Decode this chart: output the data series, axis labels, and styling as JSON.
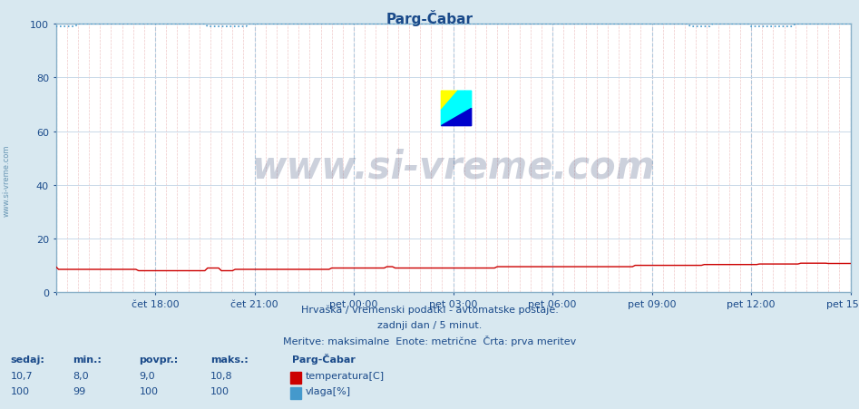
{
  "title": "Parg-Čabar",
  "title_color": "#1a4a8a",
  "bg_color": "#d8e8f0",
  "plot_bg_color": "#ffffff",
  "ylim": [
    0,
    100
  ],
  "yticks": [
    0,
    20,
    40,
    60,
    80,
    100
  ],
  "xtick_labels": [
    "čet 18:00",
    "čet 21:00",
    "pet 00:00",
    "pet 03:00",
    "pet 06:00",
    "pet 09:00",
    "pet 12:00",
    "pet 15:00"
  ],
  "n_points": 289,
  "temp_color": "#cc0000",
  "humidity_color": "#4499cc",
  "major_vgrid_color": "#b0c8dc",
  "minor_vgrid_color": "#f0c8c8",
  "hgrid_color": "#c8d8e8",
  "footer_line1": "Hrvaška / vremenski podatki - avtomatske postaje.",
  "footer_line2": "zadnji dan / 5 minut.",
  "footer_line3": "Meritve: maksimalne  Enote: metrične  Črta: prva meritev",
  "legend_title": "Parg-Čabar",
  "legend_temp_label": "temperatura[C]",
  "legend_humidity_label": "vlaga[%]",
  "stats_headers": [
    "sedaj:",
    "min.:",
    "povpr.:",
    "maks.:"
  ],
  "temp_stats": [
    "10,7",
    "8,0",
    "9,0",
    "10,8"
  ],
  "humidity_stats": [
    "100",
    "99",
    "100",
    "100"
  ],
  "watermark": "www.si-vreme.com",
  "left_label": "www.si-vreme.com",
  "text_color": "#1a4a8a"
}
